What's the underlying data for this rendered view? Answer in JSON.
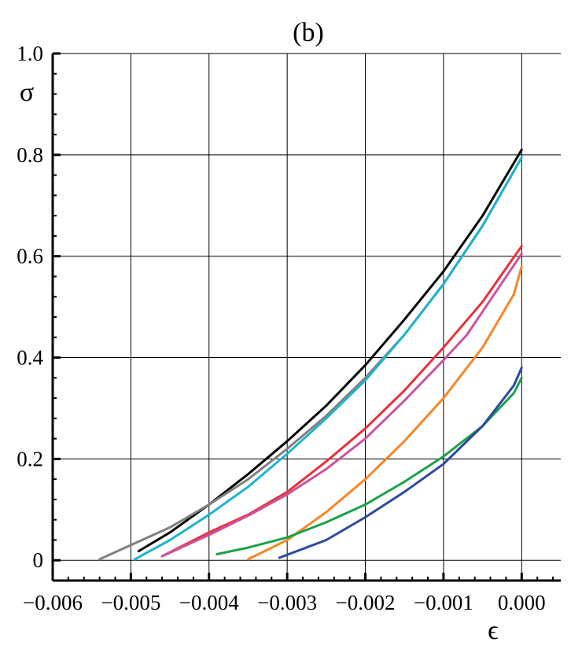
{
  "chart_data": {
    "type": "line",
    "title": "(b)",
    "xlabel": "ϵ",
    "ylabel": "σ",
    "xlim": [
      -0.006,
      0.0005
    ],
    "ylim": [
      -0.04,
      1.0
    ],
    "grid": true,
    "x_ticks": [
      -0.006,
      -0.005,
      -0.004,
      -0.003,
      -0.002,
      -0.001,
      0.0
    ],
    "x_tick_labels": [
      "−0.006",
      "−0.005",
      "−0.004",
      "−0.003",
      "−0.002",
      "−0.001",
      "0.000"
    ],
    "y_ticks": [
      0,
      0.2,
      0.4,
      0.6,
      0.8,
      1.0
    ],
    "y_tick_labels": [
      "0",
      "0.2",
      "0.4",
      "0.6",
      "0.8",
      "1.0"
    ],
    "series": [
      {
        "color": "#000000",
        "x": [
          -0.0049,
          -0.0045,
          -0.004,
          -0.0035,
          -0.003,
          -0.0025,
          -0.002,
          -0.0015,
          -0.001,
          -0.0005,
          0.0
        ],
        "y": [
          0.018,
          0.055,
          0.11,
          0.17,
          0.235,
          0.305,
          0.385,
          0.475,
          0.57,
          0.68,
          0.81
        ]
      },
      {
        "color": "#808080",
        "x": [
          -0.0054,
          -0.005,
          -0.0045,
          -0.004,
          -0.0035,
          -0.003,
          -0.0025,
          -0.002,
          -0.0015,
          -0.001,
          -0.0005,
          0.0
        ],
        "y": [
          0.002,
          0.03,
          0.065,
          0.11,
          0.16,
          0.22,
          0.285,
          0.36,
          0.445,
          0.545,
          0.66,
          0.795
        ]
      },
      {
        "color": "#1fb3cf",
        "x": [
          -0.00495,
          -0.0045,
          -0.004,
          -0.0035,
          -0.003,
          -0.0025,
          -0.002,
          -0.0015,
          -0.001,
          -0.0005,
          0.0
        ],
        "y": [
          0.002,
          0.04,
          0.09,
          0.145,
          0.21,
          0.28,
          0.355,
          0.445,
          0.545,
          0.66,
          0.795
        ]
      },
      {
        "color": "#e8303a",
        "x": [
          -0.0046,
          -0.004,
          -0.0035,
          -0.003,
          -0.0025,
          -0.002,
          -0.0015,
          -0.001,
          -0.0005,
          0.0
        ],
        "y": [
          0.008,
          0.055,
          0.09,
          0.135,
          0.195,
          0.26,
          0.335,
          0.42,
          0.51,
          0.62
        ]
      },
      {
        "color": "#c9549f",
        "x": [
          -0.0046,
          -0.004,
          -0.0035,
          -0.003,
          -0.0025,
          -0.002,
          -0.0015,
          -0.001,
          -0.0007,
          0.0
        ],
        "y": [
          0.008,
          0.05,
          0.088,
          0.13,
          0.18,
          0.24,
          0.315,
          0.395,
          0.445,
          0.605
        ]
      },
      {
        "color": "#f7862a",
        "x": [
          -0.0035,
          -0.003,
          -0.0025,
          -0.002,
          -0.0015,
          -0.001,
          -0.0005,
          -0.0001,
          0.0
        ],
        "y": [
          0.002,
          0.04,
          0.095,
          0.16,
          0.235,
          0.32,
          0.42,
          0.525,
          0.58
        ]
      },
      {
        "color": "#1ba24a",
        "x": [
          -0.0039,
          -0.0035,
          -0.003,
          -0.0025,
          -0.002,
          -0.0015,
          -0.001,
          -0.0005,
          -0.0001,
          0.0
        ],
        "y": [
          0.012,
          0.025,
          0.045,
          0.075,
          0.11,
          0.155,
          0.205,
          0.265,
          0.33,
          0.36
        ]
      },
      {
        "color": "#2c4a9e",
        "x": [
          -0.0031,
          -0.0025,
          -0.002,
          -0.0015,
          -0.001,
          -0.0005,
          -0.0001,
          0.0
        ],
        "y": [
          0.005,
          0.04,
          0.085,
          0.135,
          0.19,
          0.265,
          0.345,
          0.38
        ]
      }
    ]
  }
}
